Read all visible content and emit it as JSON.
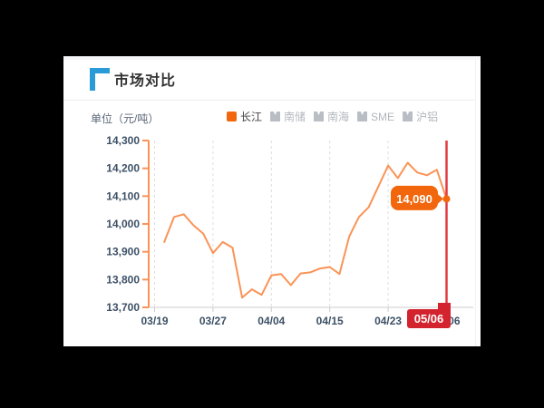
{
  "panel": {
    "title": "市场对比"
  },
  "chart_data": {
    "type": "line",
    "title": "市场对比",
    "unit_label": "单位（元/吨）",
    "legend": [
      {
        "id": "changjiang",
        "label": "长江",
        "active": true
      },
      {
        "id": "nanchu",
        "label": "南储",
        "active": false
      },
      {
        "id": "nanhai",
        "label": "南海",
        "active": false
      },
      {
        "id": "sme",
        "label": "SME",
        "active": false
      },
      {
        "id": "hulv",
        "label": "沪铝",
        "active": false
      }
    ],
    "legend_position": "top",
    "grid": "vertical-dashed",
    "y_axis": {
      "ylim": [
        13700,
        14300
      ],
      "ticks": [
        14300,
        14200,
        14100,
        14000,
        13900,
        13800,
        13700
      ],
      "tick_labels": [
        "14,300",
        "14,200",
        "14,100",
        "14,000",
        "13,900",
        "13,800",
        "13,700"
      ]
    },
    "x_axis": {
      "tick_labels": [
        "03/19",
        "03/27",
        "04/04",
        "04/15",
        "04/23",
        "05/06"
      ],
      "ticks_at_point_index": [
        -1,
        5,
        11,
        17,
        23,
        29
      ]
    },
    "series": [
      {
        "name": "长江",
        "values": [
          13935,
          14025,
          14035,
          13995,
          13965,
          13895,
          13935,
          13915,
          13735,
          13765,
          13745,
          13815,
          13820,
          13780,
          13822,
          13826,
          13840,
          13845,
          13820,
          13955,
          14025,
          14060,
          14135,
          14210,
          14165,
          14220,
          14185,
          14175,
          14195,
          14090
        ]
      }
    ],
    "marker": {
      "value": 14090,
      "value_label": "14,090",
      "date_label": "05/06"
    },
    "colors": {
      "line_orange": "#FA9355",
      "accent_orange": "#F2670D",
      "marker_red_line": "#E23A40",
      "marker_red_badge": "#D2232E",
      "title_bracket_blue": "#2B9BD7",
      "axis_label": "#3D5166",
      "gridline": "#dcdee2",
      "x_axis_line": "#cccccc",
      "inactive_gray": "#B9BDC4"
    }
  }
}
